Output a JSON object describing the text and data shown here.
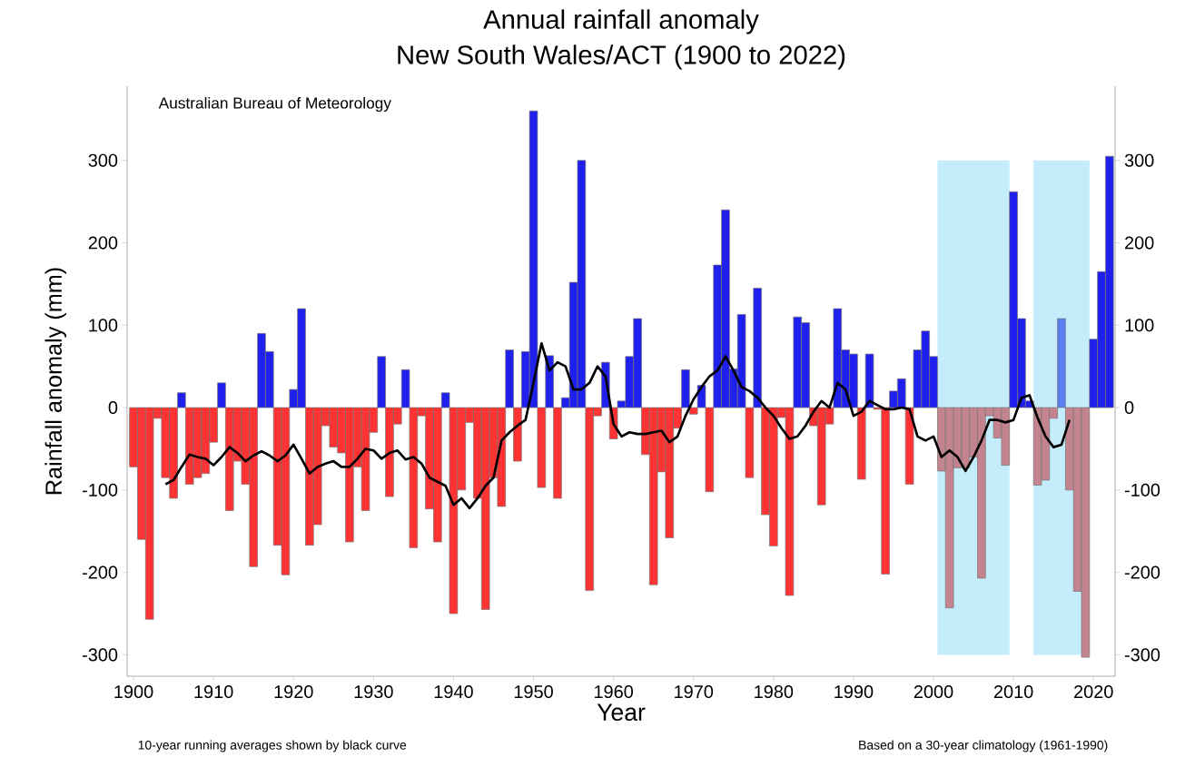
{
  "chart_data": {
    "type": "bar",
    "title": "Annual rainfall anomaly",
    "subtitle": "New South Wales/ACT (1900 to 2022)",
    "xlabel": "Year",
    "ylabel": "Rainfall anomaly (mm)",
    "annotations": [
      "Australian Bureau of Meteorology",
      "10-year running averages shown by black curve",
      "Based on a 30-year climatology (1961-1990)"
    ],
    "xlim": [
      1899.2,
      2022.7
    ],
    "xticks": [
      1900,
      1910,
      1920,
      1930,
      1940,
      1950,
      1960,
      1970,
      1980,
      1990,
      2000,
      2010,
      2020
    ],
    "ylim": [
      -326,
      390
    ],
    "yticks": [
      -300,
      -200,
      -100,
      0,
      100,
      200,
      300
    ],
    "y2lim": [
      -326,
      390
    ],
    "y2ticks": [
      -300,
      -200,
      -100,
      0,
      100,
      200,
      300
    ],
    "bands": [
      {
        "axis": "x",
        "from": 2000.5,
        "to": 2009.5,
        "color": "#c4ecfa"
      },
      {
        "axis": "x",
        "from": 2012.5,
        "to": 2019.5,
        "color": "#c4ecfa"
      }
    ],
    "series": [
      {
        "x": [
          1900,
          1901,
          1902,
          1903,
          1904,
          1905,
          1906,
          1907,
          1908,
          1909,
          1910,
          1911,
          1912,
          1913,
          1914,
          1915,
          1916,
          1917,
          1918,
          1919,
          1920,
          1921,
          1922,
          1923,
          1924,
          1925,
          1926,
          1927,
          1928,
          1929,
          1930,
          1931,
          1932,
          1933,
          1934,
          1935,
          1936,
          1937,
          1938,
          1939,
          1940,
          1941,
          1942,
          1943,
          1944,
          1945,
          1946,
          1947,
          1948,
          1949,
          1950,
          1951,
          1952,
          1953,
          1954,
          1955,
          1956,
          1957,
          1958,
          1959,
          1960,
          1961,
          1962,
          1963,
          1964,
          1965,
          1966,
          1967,
          1968,
          1969,
          1970,
          1971,
          1972,
          1973,
          1974,
          1975,
          1976,
          1977,
          1978,
          1979,
          1980,
          1981,
          1982,
          1983,
          1984,
          1985,
          1986,
          1987,
          1988,
          1989,
          1990,
          1991,
          1992,
          1993,
          1994,
          1995,
          1996,
          1997,
          1998,
          1999,
          2000,
          2001,
          2002,
          2003,
          2004,
          2005,
          2006,
          2007,
          2008,
          2009,
          2010,
          2011,
          2012,
          2013,
          2014,
          2015,
          2016,
          2017,
          2018,
          2019,
          2020,
          2021,
          2022
        ],
        "values": [
          -72,
          -160,
          -257,
          -13,
          -85,
          -110,
          18,
          -93,
          -85,
          -80,
          -42,
          30,
          -125,
          -65,
          -93,
          -193,
          90,
          68,
          -167,
          -203,
          22,
          120,
          -167,
          -142,
          -22,
          -48,
          -55,
          -163,
          -72,
          -125,
          -30,
          62,
          -108,
          -20,
          46,
          -170,
          -10,
          -123,
          -163,
          18,
          -250,
          -100,
          -18,
          -110,
          -245,
          -85,
          -120,
          70,
          -65,
          68,
          360,
          -97,
          63,
          -110,
          12,
          152,
          300,
          -222,
          -10,
          55,
          -38,
          8,
          62,
          108,
          -57,
          -215,
          -78,
          -158,
          -25,
          46,
          -8,
          27,
          -102,
          173,
          240,
          47,
          113,
          -85,
          145,
          -130,
          -168,
          -12,
          -228,
          110,
          103,
          -22,
          -118,
          -20,
          120,
          70,
          65,
          -87,
          65,
          -2,
          -202,
          20,
          35,
          -93,
          70,
          93,
          62,
          -77,
          -243,
          -73,
          -73,
          -60,
          -207,
          -10,
          -37,
          -70,
          262,
          108,
          8,
          -94,
          -88,
          -13,
          108,
          -100,
          -223,
          -303,
          83,
          165,
          305
        ],
        "colors": [
          "#ff3333",
          "#ff3333",
          "#ff3333",
          "#ff3333",
          "#ff3333",
          "#ff3333",
          "#2020ee",
          "#ff3333",
          "#ff3333",
          "#ff3333",
          "#ff3333",
          "#2020ee",
          "#ff3333",
          "#ff3333",
          "#ff3333",
          "#ff3333",
          "#2020ee",
          "#2020ee",
          "#ff3333",
          "#ff3333",
          "#2020ee",
          "#2020ee",
          "#ff3333",
          "#ff3333",
          "#ff3333",
          "#ff3333",
          "#ff3333",
          "#ff3333",
          "#ff3333",
          "#ff3333",
          "#ff3333",
          "#2020ee",
          "#ff3333",
          "#ff3333",
          "#2020ee",
          "#ff3333",
          "#ff3333",
          "#ff3333",
          "#ff3333",
          "#2020ee",
          "#ff3333",
          "#ff3333",
          "#ff3333",
          "#ff3333",
          "#ff3333",
          "#ff3333",
          "#ff3333",
          "#2020ee",
          "#ff3333",
          "#2020ee",
          "#2020ee",
          "#ff3333",
          "#2020ee",
          "#ff3333",
          "#2020ee",
          "#2020ee",
          "#2020ee",
          "#ff3333",
          "#ff3333",
          "#2020ee",
          "#ff3333",
          "#2020ee",
          "#2020ee",
          "#2020ee",
          "#ff3333",
          "#ff3333",
          "#ff3333",
          "#ff3333",
          "#ff3333",
          "#2020ee",
          "#ff3333",
          "#2020ee",
          "#ff3333",
          "#2020ee",
          "#2020ee",
          "#2020ee",
          "#2020ee",
          "#ff3333",
          "#2020ee",
          "#ff3333",
          "#ff3333",
          "#ff3333",
          "#ff3333",
          "#2020ee",
          "#2020ee",
          "#ff3333",
          "#ff3333",
          "#ff3333",
          "#2020ee",
          "#2020ee",
          "#2020ee",
          "#ff3333",
          "#2020ee",
          "#ff3333",
          "#ff3333",
          "#2020ee",
          "#2020ee",
          "#ff3333",
          "#2020ee",
          "#2020ee",
          "#2020ee",
          "#c4848f",
          "#c4848f",
          "#c4848f",
          "#c4848f",
          "#c4848f",
          "#c4848f",
          "#c4848f",
          "#c4848f",
          "#c4848f",
          "#2020ee",
          "#2020ee",
          "#2020ee",
          "#c4848f",
          "#c4848f",
          "#c4848f",
          "#5a7ef0",
          "#c4848f",
          "#c4848f",
          "#c4848f",
          "#2020ee",
          "#2020ee",
          "#2020ee"
        ]
      },
      {
        "type": "line",
        "color": "#000000",
        "x": [
          1904,
          1905,
          1906,
          1907,
          1908,
          1909,
          1910,
          1911,
          1912,
          1913,
          1914,
          1915,
          1916,
          1917,
          1918,
          1919,
          1920,
          1921,
          1922,
          1923,
          1924,
          1925,
          1926,
          1927,
          1928,
          1929,
          1930,
          1931,
          1932,
          1933,
          1934,
          1935,
          1936,
          1937,
          1938,
          1939,
          1940,
          1941,
          1942,
          1943,
          1944,
          1945,
          1946,
          1947,
          1948,
          1949,
          1950,
          1951,
          1952,
          1953,
          1954,
          1955,
          1956,
          1957,
          1958,
          1959,
          1960,
          1961,
          1962,
          1963,
          1964,
          1965,
          1966,
          1967,
          1968,
          1969,
          1970,
          1971,
          1972,
          1973,
          1974,
          1975,
          1976,
          1977,
          1978,
          1979,
          1980,
          1981,
          1982,
          1983,
          1984,
          1985,
          1986,
          1987,
          1988,
          1989,
          1990,
          1991,
          1992,
          1993,
          1994,
          1995,
          1996,
          1997,
          1998,
          1999,
          2000,
          2001,
          2002,
          2003,
          2004,
          2005,
          2006,
          2007,
          2008,
          2009,
          2010,
          2011,
          2012,
          2013,
          2014,
          2015,
          2016,
          2017
        ],
        "values": [
          -93,
          -88,
          -72,
          -57,
          -60,
          -62,
          -70,
          -60,
          -48,
          -55,
          -65,
          -58,
          -53,
          -58,
          -65,
          -58,
          -45,
          -62,
          -80,
          -72,
          -68,
          -65,
          -72,
          -72,
          -62,
          -50,
          -52,
          -62,
          -55,
          -52,
          -63,
          -60,
          -68,
          -85,
          -90,
          -95,
          -118,
          -110,
          -122,
          -110,
          -95,
          -85,
          -40,
          -30,
          -22,
          -15,
          30,
          78,
          45,
          55,
          50,
          22,
          22,
          30,
          50,
          38,
          -20,
          -35,
          -30,
          -32,
          -32,
          -30,
          -28,
          -42,
          -35,
          -10,
          10,
          25,
          38,
          45,
          62,
          45,
          25,
          20,
          12,
          0,
          -10,
          -25,
          -38,
          -35,
          -22,
          -5,
          8,
          0,
          30,
          22,
          -10,
          -5,
          8,
          3,
          -2,
          -2,
          0,
          -2,
          -35,
          -40,
          -35,
          -60,
          -52,
          -60,
          -77,
          -60,
          -40,
          -15,
          -15,
          -18,
          -15,
          12,
          15,
          -12,
          -35,
          -48,
          -45,
          -15
        ]
      }
    ]
  }
}
